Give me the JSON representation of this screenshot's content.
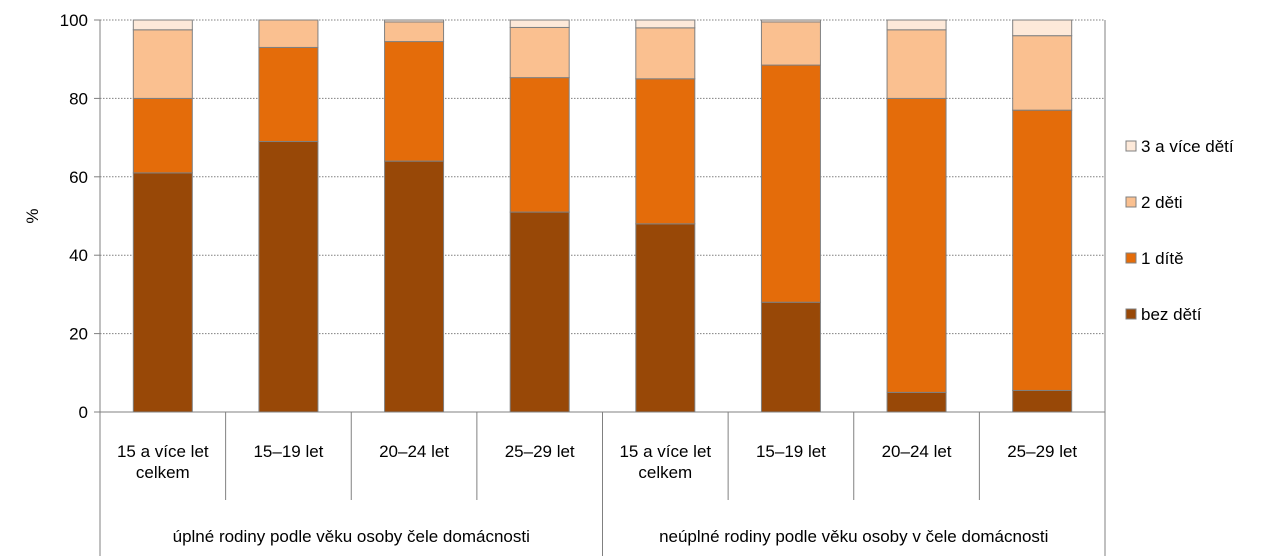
{
  "chart_data": {
    "type": "bar",
    "stacked": true,
    "ylabel": "%",
    "ylim": [
      0,
      100
    ],
    "yticks": [
      "0",
      "20",
      "40",
      "60",
      "80",
      "100"
    ],
    "grid": true,
    "legend_position": "right",
    "categories": [
      [
        "15 a více let",
        "celkem"
      ],
      [
        "15–19 let"
      ],
      [
        "20–24 let"
      ],
      [
        "25–29 let"
      ],
      [
        "15 a více let",
        "celkem"
      ],
      [
        "15–19 let"
      ],
      [
        "20–24 let"
      ],
      [
        "25–29 let"
      ]
    ],
    "groups": [
      {
        "label": "úplné rodiny podle věku osoby čele domácnosti",
        "span": 4
      },
      {
        "label": "neúplné rodiny podle věku osoby v čele domácnosti",
        "span": 4
      }
    ],
    "series": [
      {
        "name": "bez dětí",
        "color": "#984807",
        "values": [
          61,
          69,
          64,
          51,
          48,
          28,
          5,
          5.5
        ]
      },
      {
        "name": "1 dítě",
        "color": "#E46C0A",
        "values": [
          19,
          24,
          30.5,
          34.3,
          37,
          60.5,
          75,
          71.5
        ]
      },
      {
        "name": "2 děti",
        "color": "#FAC090",
        "values": [
          17.5,
          7,
          5,
          12.8,
          13,
          11,
          17.5,
          19
        ]
      },
      {
        "name": "3 a více dětí",
        "color": "#FDE9D9",
        "values": [
          2.5,
          0,
          0.5,
          1.9,
          2,
          0.5,
          2.5,
          4
        ]
      }
    ]
  }
}
